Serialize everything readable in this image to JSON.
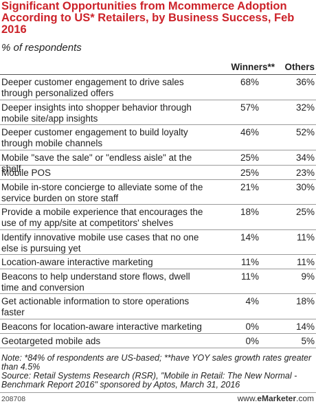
{
  "title": "Significant Opportunities from Mcommerce Adoption According to US* Retailers, by Business Success, Feb 2016",
  "subtitle": "% of respondents",
  "columns": [
    "Winners**",
    "Others"
  ],
  "chart_data": {
    "type": "table",
    "title": "Significant Opportunities from Mcommerce Adoption According to US* Retailers, by Business Success, Feb 2016",
    "unit": "% of respondents",
    "series": [
      {
        "name": "Winners**",
        "values": [
          68,
          57,
          46,
          25,
          25,
          21,
          18,
          14,
          11,
          11,
          4,
          0,
          0
        ]
      },
      {
        "name": "Others",
        "values": [
          36,
          32,
          52,
          34,
          23,
          30,
          25,
          11,
          11,
          9,
          18,
          14,
          5
        ]
      }
    ],
    "rows": [
      {
        "label": "Deeper customer engagement to drive sales through personalized offers",
        "winners": "68%",
        "others": "36%"
      },
      {
        "label": "Deeper insights into shopper behavior through mobile site/app insights",
        "winners": "57%",
        "others": "32%"
      },
      {
        "label": "Deeper customer engagement to build loyalty through mobile channels",
        "winners": "46%",
        "others": "52%"
      },
      {
        "label": "Mobile \"save the sale\" or \"endless aisle\" at the shelf",
        "winners": "25%",
        "others": "34%"
      },
      {
        "label": "Mobile POS",
        "winners": "25%",
        "others": "23%"
      },
      {
        "label": "Mobile in-store concierge to alleviate some of the service burden on store staff",
        "winners": "21%",
        "others": "30%"
      },
      {
        "label": "Provide a mobile experience that encourages the use of my app/site at competitors' shelves",
        "winners": "18%",
        "others": "25%"
      },
      {
        "label": "Identify innovative mobile use cases that no one else is pursuing yet",
        "winners": "14%",
        "others": "11%"
      },
      {
        "label": "Location-aware interactive marketing",
        "winners": "11%",
        "others": "11%"
      },
      {
        "label": "Beacons to help understand store flows, dwell time and conversion",
        "winners": "11%",
        "others": "9%"
      },
      {
        "label": "Get actionable information to store operations faster",
        "winners": "4%",
        "others": "18%"
      },
      {
        "label": "Beacons for location-aware interactive marketing",
        "winners": "0%",
        "others": "14%"
      },
      {
        "label": "Geotargeted mobile ads",
        "winners": "0%",
        "others": "5%"
      }
    ]
  },
  "note": "Note: *84% of respondents are US-based; **have YOY sales growth rates greater than 4.5%",
  "source": "Source: Retail Systems Research (RSR), \"Mobile in Retail: The New Normal - Benchmark Report 2016\" sponsored by Aptos, March 31, 2016",
  "footer": {
    "id": "208708",
    "brand_prefix": "www.",
    "brand_name": "eMarketer",
    "brand_suffix": ".com"
  }
}
